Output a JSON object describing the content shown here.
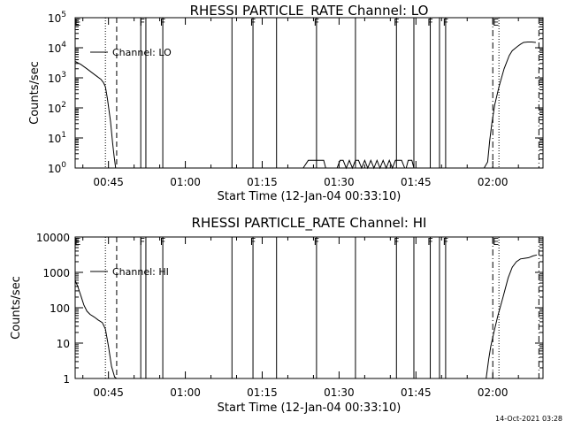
{
  "footer_timestamp": "14-Oct-2021 03:28",
  "colors": {
    "background": "#ffffff",
    "foreground": "#000000"
  },
  "chart_data": [
    {
      "type": "line",
      "title": "RHESSI PARTICLE_RATE Channel: LO",
      "xlabel": "Start Time (12-Jan-04 00:33:10)",
      "ylabel": "Counts/sec",
      "yscale": "log",
      "ylim": [
        1,
        100000
      ],
      "xlim_minutes": [
        38.5,
        129.8
      ],
      "x_tick_labels": [
        "00:45",
        "01:00",
        "01:15",
        "01:30",
        "01:45",
        "02:00"
      ],
      "y_tick_labels": [
        "10^0",
        "10^1",
        "10^2",
        "10^3",
        "10^4",
        "10^5"
      ],
      "legend": {
        "position": "top-left",
        "entries": [
          "Channel: LO"
        ]
      },
      "series": [
        {
          "name": "Channel: LO",
          "x": [
            38.5,
            39.6,
            40.8,
            42.5,
            43.5,
            44.0,
            44.4,
            44.8,
            45.4,
            45.8,
            46.1,
            46.4
          ],
          "y": [
            3500,
            2800,
            2000,
            1200,
            900,
            700,
            500,
            200,
            35,
            7,
            2.5,
            1
          ],
          "segments": [
            {
              "x": [
                118.3,
                119.0,
                119.4,
                119.8,
                120.4,
                121.2,
                122.2,
                123.2,
                123.8,
                124.8,
                125.4,
                126.0,
                126.8,
                127.6,
                128.4
              ],
              "y": [
                1,
                1.6,
                8,
                30,
                130,
                500,
                2000,
                5500,
                8000,
                11000,
                13000,
                15000,
                15500,
                15500,
                15000
              ]
            },
            {
              "x": [
                83.0,
                84.0,
                84.8,
                86.0,
                87.0,
                87.4
              ],
              "y": [
                1,
                1.8,
                1.8,
                1.8,
                1.8,
                1
              ]
            },
            {
              "x": [
                89.6,
                90.2,
                90.8,
                91.4,
                92.0,
                92.6,
                93.2,
                93.8,
                94.4,
                95.0,
                95.6,
                96.2,
                96.8,
                97.4,
                98.0,
                98.6,
                99.2,
                99.8,
                100.4,
                101.0,
                101.6,
                102.2,
                102.8
              ],
              "y": [
                1,
                1.8,
                1.8,
                1,
                1.8,
                1,
                1.8,
                1.8,
                1,
                1.8,
                1,
                1.8,
                1,
                1.8,
                1,
                1.8,
                1,
                1.8,
                1,
                1.8,
                1.8,
                1.8,
                1
              ]
            },
            {
              "x": [
                103.1,
                103.5,
                104.2,
                104.6,
                105.0
              ],
              "y": [
                1,
                1.8,
                1.8,
                1,
                1
              ]
            }
          ]
        }
      ],
      "flags": [
        {
          "label": "E",
          "x": 39.0
        },
        {
          "label": "F",
          "x": 51.6
        },
        {
          "label": "F",
          "x": 55.6
        },
        {
          "label": "F",
          "x": 73.2
        },
        {
          "label": "F",
          "x": 85.6
        },
        {
          "label": "F",
          "x": 101.2
        },
        {
          "label": "F",
          "x": 107.8
        },
        {
          "label": "F",
          "x": 110.8
        },
        {
          "label": "E",
          "x": 120.6
        }
      ],
      "solid_lines_x": [
        51.3,
        52.3,
        55.6,
        69.1,
        73.2,
        77.8,
        85.6,
        93.2,
        101.2,
        104.6,
        107.8,
        109.6,
        110.8
      ],
      "dotted_lines_x": [
        44.4,
        121.2
      ],
      "dashed_lines_x": [
        46.6
      ],
      "dashdot_lines_x": [
        120.0,
        129.0
      ]
    },
    {
      "type": "line",
      "title": "RHESSI PARTICLE_RATE Channel: HI",
      "xlabel": "Start Time (12-Jan-04 00:33:10)",
      "ylabel": "Counts/sec",
      "yscale": "log",
      "ylim": [
        1,
        10000
      ],
      "xlim_minutes": [
        38.5,
        129.8
      ],
      "x_tick_labels": [
        "00:45",
        "01:00",
        "01:15",
        "01:30",
        "01:45",
        "02:00"
      ],
      "y_tick_labels": [
        "1",
        "10",
        "100",
        "1000",
        "10000"
      ],
      "legend": {
        "position": "top-left",
        "entries": [
          "Channel: HI"
        ]
      },
      "series": [
        {
          "name": "Channel: HI",
          "x": [
            38.5,
            39.0,
            39.6,
            40.2,
            40.8,
            41.4,
            42.2,
            43.0,
            43.8,
            44.4,
            45.0,
            45.6,
            46.2,
            46.6
          ],
          "y": [
            600,
            400,
            220,
            120,
            80,
            65,
            55,
            45,
            38,
            25,
            8,
            2.2,
            1.1,
            1
          ],
          "segments": [
            {
              "x": [
                118.7,
                119.2,
                119.6,
                120.2,
                121.0,
                122.0,
                123.0,
                123.8,
                124.6,
                125.4,
                126.2,
                127.0,
                127.8,
                128.6
              ],
              "y": [
                1,
                3.5,
                8,
                20,
                60,
                200,
                700,
                1400,
                2000,
                2400,
                2500,
                2600,
                2900,
                3100
              ]
            }
          ]
        }
      ],
      "flags": [
        {
          "label": "E",
          "x": 39.0
        },
        {
          "label": "F",
          "x": 51.6
        },
        {
          "label": "F",
          "x": 55.6
        },
        {
          "label": "F",
          "x": 73.2
        },
        {
          "label": "F",
          "x": 85.6
        },
        {
          "label": "F",
          "x": 101.2
        },
        {
          "label": "F",
          "x": 107.8
        },
        {
          "label": "F",
          "x": 110.8
        },
        {
          "label": "E",
          "x": 120.6
        }
      ],
      "solid_lines_x": [
        51.3,
        52.3,
        55.6,
        69.1,
        73.2,
        77.8,
        85.6,
        93.2,
        101.2,
        104.6,
        107.8,
        109.6,
        110.8
      ],
      "dotted_lines_x": [
        44.4,
        121.2
      ],
      "dashed_lines_x": [
        46.6
      ],
      "dashdot_lines_x": [
        120.0,
        129.0
      ]
    }
  ]
}
